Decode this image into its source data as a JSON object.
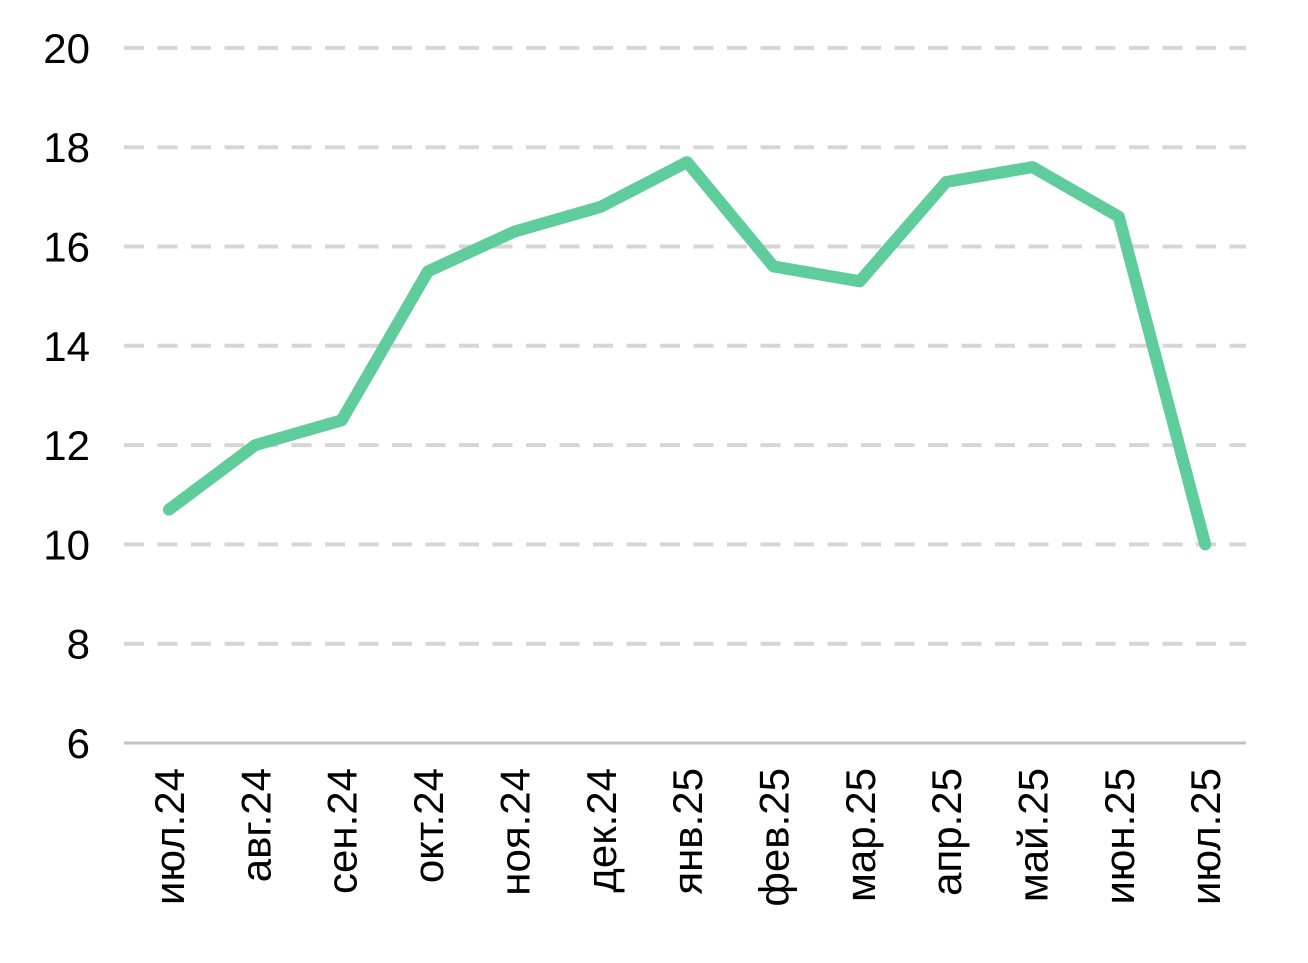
{
  "chart_data": {
    "type": "line",
    "title": "",
    "xlabel": "",
    "ylabel": "",
    "categories": [
      "июл.24",
      "авг.24",
      "сен.24",
      "окт.24",
      "ноя.24",
      "дек.24",
      "янв.25",
      "фев.25",
      "мар.25",
      "апр.25",
      "май.25",
      "июн.25",
      "июл.25"
    ],
    "values": [
      10.7,
      12.0,
      12.5,
      15.5,
      16.3,
      16.8,
      17.7,
      15.6,
      15.3,
      17.3,
      17.6,
      16.6,
      10.0
    ],
    "ylim": [
      6,
      20
    ],
    "yticks": [
      6,
      8,
      10,
      12,
      14,
      16,
      18,
      20
    ],
    "grid": "horizontal-dashed",
    "legend_position": "none",
    "colors": {
      "line": "#5ECC9B",
      "gridline": "#D6D6D6",
      "axis": "#C2C2C2",
      "text": "#000000",
      "background": "#FFFFFF"
    }
  }
}
